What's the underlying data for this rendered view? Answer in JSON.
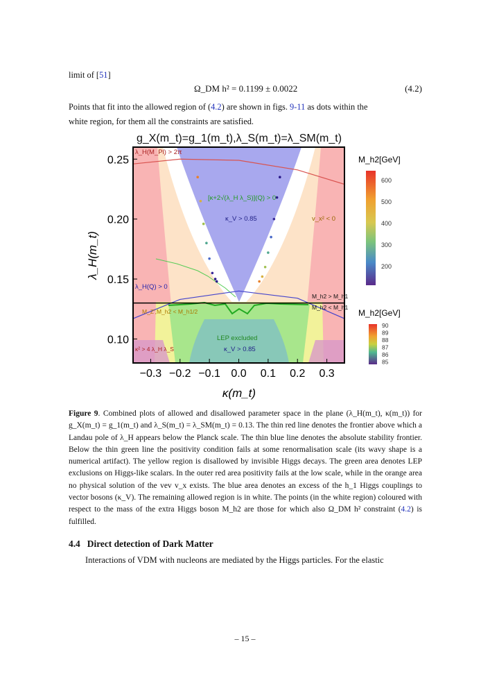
{
  "intro": {
    "line1_prefix": "limit of [",
    "line1_ref": "51",
    "line1_suffix": "]",
    "equation": "Ω_DM h² = 0.1199 ± 0.0022",
    "equation_number": "(4.2)",
    "para_a": "Points that fit into the allowed region of (",
    "para_ref_eq": "4.2",
    "para_b": ") are shown in figs. ",
    "para_ref_figs": "9-11",
    "para_c": " as dots within the",
    "para_line2": "white region, for them all the constraints are satisfied."
  },
  "figure": {
    "title": "g_X(m_t)=g_1(m_t),λ_S(m_t)=λ_SM(m_t)",
    "xlabel": "κ(m_t)",
    "ylabel": "λ_H(m_t)",
    "xticks": [
      "−0.3",
      "−0.2",
      "−0.1",
      "0.0",
      "0.1",
      "0.2",
      "0.3"
    ],
    "yticks": [
      "0.10",
      "0.15",
      "0.20",
      "0.25"
    ],
    "region_labels": {
      "landau": "λ_H(M_Pl) > 2π",
      "positivity": "[κ+2√(λ_H λ_S)](Q) > 0",
      "kappa_v_top": "κ_V > 0.85",
      "vx": "v_x² < 0",
      "stability": "λ_H(Q) > 0",
      "m2_gt": "M_h2 > M_h1",
      "m2_lt": "M_h2 < M_h1",
      "invisible": "M_Z′,M_h2 < M_h1/2",
      "lep": "LEP excluded",
      "kappa_v_bottom": "κ_V > 0.85",
      "kappa_sq": "κ² > 4 λ_H λ_S"
    },
    "colorbar_top": {
      "label": "M_h2[GeV]",
      "ticks": [
        "600",
        "500",
        "400",
        "300",
        "200"
      ]
    },
    "colorbar_bottom": {
      "label": "M_h2[GeV]",
      "ticks": [
        "90",
        "89",
        "88",
        "87",
        "86",
        "85"
      ]
    }
  },
  "chart_data": {
    "type": "scatter",
    "title": "g_X(m_t)=g_1(m_t),λ_S(m_t)=λ_SM(m_t)",
    "xlabel": "κ(m_t)",
    "ylabel": "λ_H(m_t)",
    "xlim": [
      -0.36,
      0.36
    ],
    "ylim": [
      0.08,
      0.26
    ],
    "series": [
      {
        "x": [
          -0.14,
          -0.13,
          -0.12,
          -0.11,
          -0.1,
          -0.09,
          -0.08,
          -0.075
        ],
        "y": [
          0.235,
          0.215,
          0.196,
          0.18,
          0.167,
          0.155,
          0.15,
          0.148
        ]
      },
      {
        "x": [
          0.07,
          0.08,
          0.09,
          0.1,
          0.11,
          0.12,
          0.13,
          0.14
        ],
        "y": [
          0.148,
          0.152,
          0.16,
          0.172,
          0.185,
          0.2,
          0.218,
          0.235
        ]
      }
    ],
    "lines": {
      "landau_red": {
        "x": [
          -0.36,
          -0.2,
          0.0,
          0.2,
          0.36
        ],
        "y": [
          0.246,
          0.25,
          0.249,
          0.241,
          0.229
        ]
      },
      "stability_blue": {
        "x": [
          -0.36,
          -0.2,
          0.0,
          0.2,
          0.36
        ],
        "y": [
          0.117,
          0.133,
          0.14,
          0.134,
          0.117
        ]
      },
      "mass_equal_black": {
        "x": [
          -0.36,
          0.36
        ],
        "y": [
          0.13,
          0.13
        ]
      }
    }
  },
  "caption": {
    "label": "Figure 9",
    "text": ". Combined plots of allowed and disallowed parameter space in the plane (λ_H(m_t), κ(m_t)) for g_X(m_t) = g_1(m_t) and λ_S(m_t) = λ_SM(m_t) = 0.13. The thin red line denotes the frontier above which a Landau pole of λ_H appears below the Planck scale. The thin blue line denotes the absolute stability frontier. Below the thin green line the positivity condition fails at some renormalisation scale (its wavy shape is a numerical artifact). The yellow region is disallowed by invisible Higgs decays. The green area denotes LEP exclusions on Higgs-like scalars. In the outer red area positivity fails at the low scale, while in the orange area no physical solution of the vev v_x exists. The blue area denotes an excess of the h_1 Higgs couplings to vector bosons (κ_V). The remaining allowed region is in white. The points (in the white region) coloured with respect to the mass of the extra Higgs boson M_h2 are those for which also Ω_DM h² constraint (",
    "ref": "4.2",
    "tail": ") is fulfilled."
  },
  "section": {
    "number": "4.4",
    "title": "Direct detection of Dark Matter"
  },
  "paragraph": "Interactions of VDM with nucleons are mediated by the Higgs particles. For the elastic",
  "page_number": "– 15 –",
  "colors": {
    "link": "#2233bb",
    "landau_line": "#d9534f",
    "stability_line": "#4444cc",
    "positivity_line": "#33cc33"
  }
}
